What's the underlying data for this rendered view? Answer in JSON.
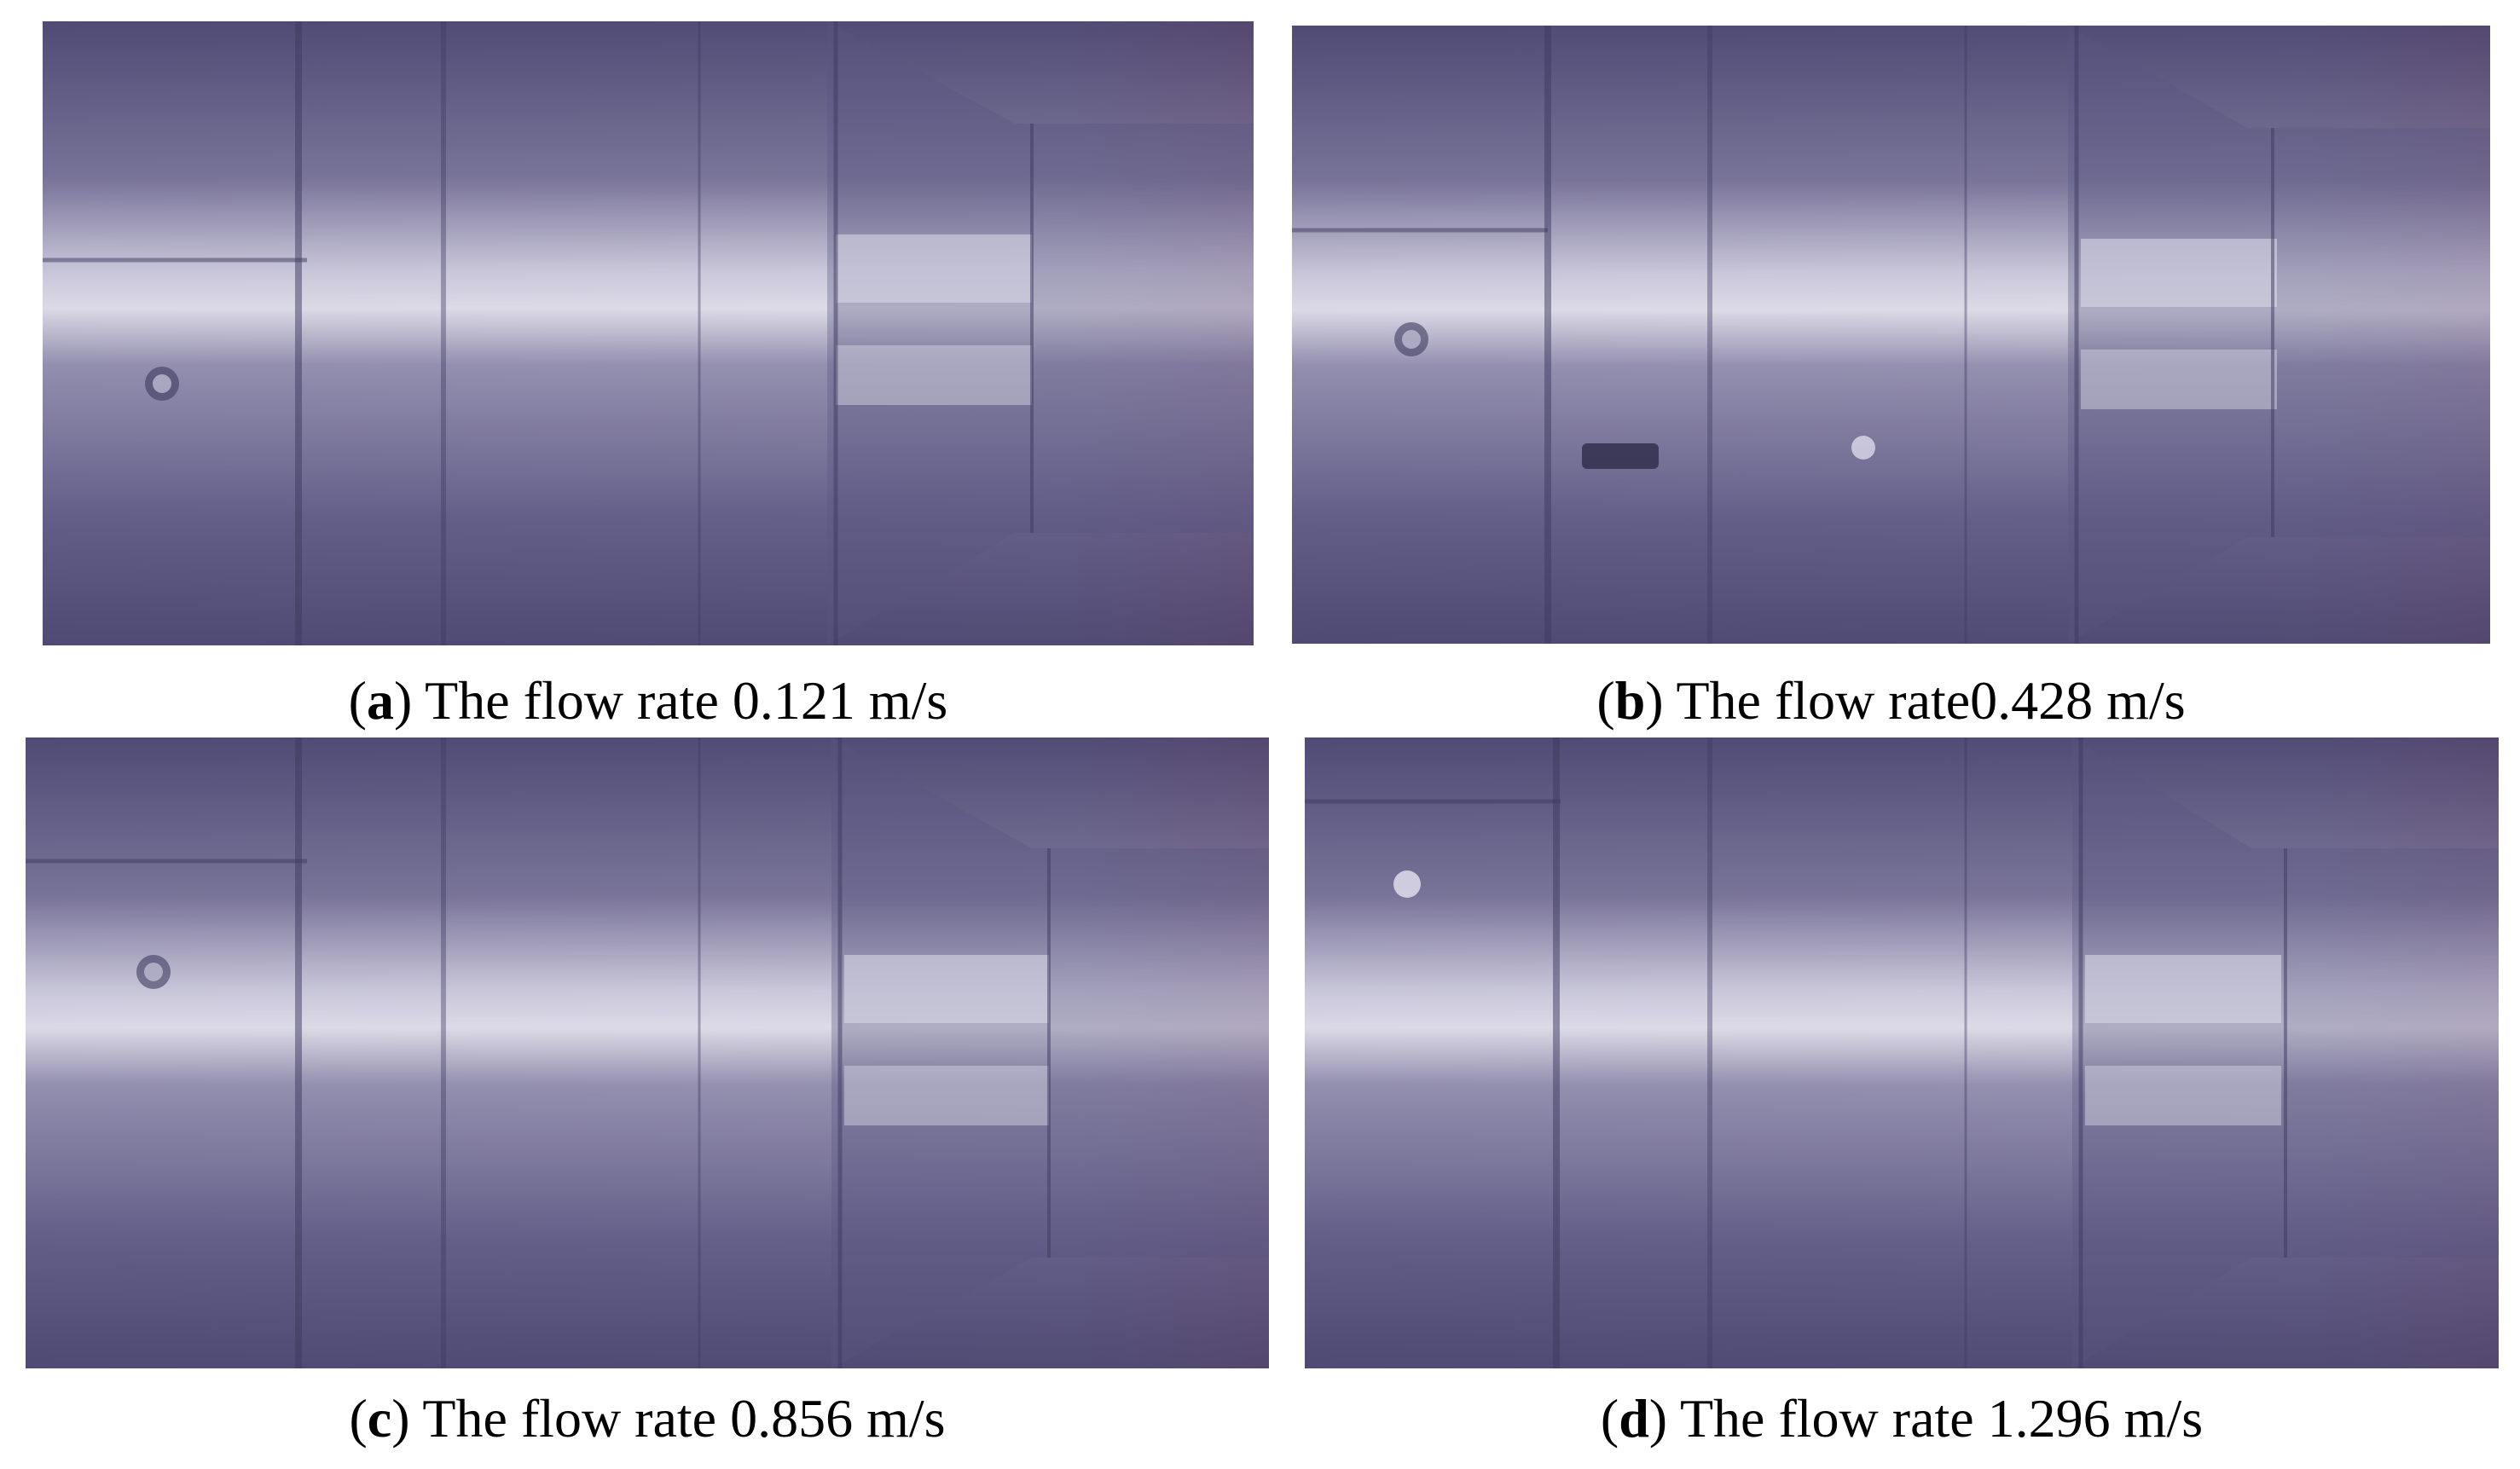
{
  "figure": {
    "panels": [
      {
        "id": "a",
        "letter": "a",
        "caption": "The flow rate 0.121 m/s",
        "subject": "metal-shaft-photo"
      },
      {
        "id": "b",
        "letter": "b",
        "caption": "The flow rate0.428 m/s",
        "subject": "metal-shaft-photo"
      },
      {
        "id": "c",
        "letter": "c",
        "caption": "The flow rate 0.856 m/s",
        "subject": "metal-shaft-photo"
      },
      {
        "id": "d",
        "letter": "d",
        "caption": "The flow rate 1.296 m/s",
        "subject": "metal-shaft-photo"
      }
    ],
    "colors": {
      "tint": "#6a6590",
      "highlight": "#e4e2ee",
      "shadow": "#3e3a60",
      "background_pink": "#8a5070"
    }
  }
}
